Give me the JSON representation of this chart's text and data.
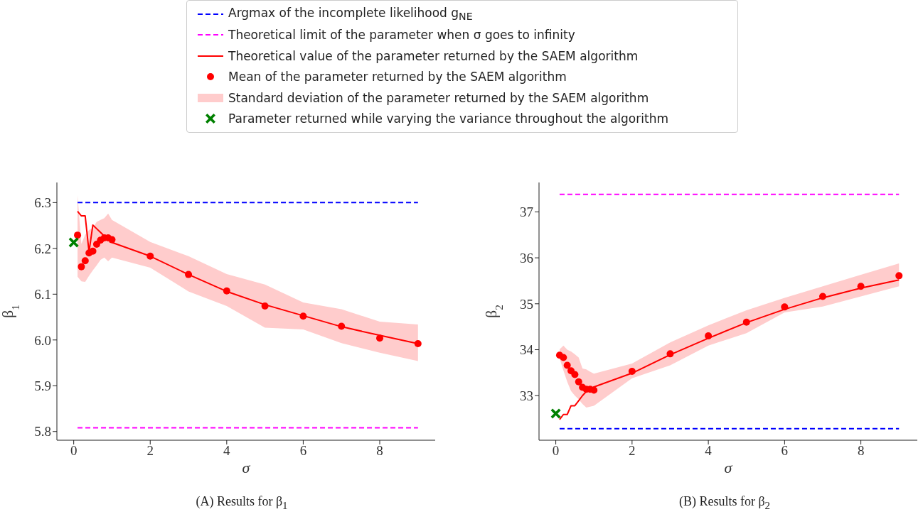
{
  "chart_data": [
    {
      "type": "line",
      "legend": "top",
      "xlabel": "σ",
      "ylabel": "β$_{1}$",
      "annotations": [
        "(A) Results for β$_{1}$"
      ],
      "xlim": [
        -0.44,
        9.45
      ],
      "ylim": [
        5.781,
        6.344
      ],
      "xticks": [
        0,
        2,
        4,
        6,
        8
      ],
      "yticks": [
        {
          "value": 5.8,
          "label": "5.8"
        },
        {
          "value": 5.9,
          "label": "5.9"
        },
        {
          "value": 6,
          "label": "6.0"
        },
        {
          "value": 6.1,
          "label": "6.1"
        },
        {
          "value": 6.2,
          "label": "6.2"
        },
        {
          "value": 6.3,
          "label": "6.3"
        }
      ],
      "series": [
        {
          "name": "Argmax of the incomplete likelihood g$_{NE}$",
          "color": "#0000ff",
          "line_style": "dashed",
          "marker": "none",
          "x": [
            0.1,
            9
          ],
          "values": [
            6.3,
            6.3
          ]
        },
        {
          "name": "Theoretical limit of the parameter when σ goes to infinity",
          "color": "#ff00ff",
          "line_style": "dashed",
          "marker": "none",
          "x": [
            0.1,
            9
          ],
          "values": [
            5.808,
            5.808
          ]
        },
        {
          "name": "Theoretical value of the parameter returned by the SAEM algorithm",
          "color": "#ff0000",
          "line_style": "solid",
          "marker": "none",
          "x": [
            0.1,
            0.2,
            0.3,
            0.4,
            0.5,
            0.6,
            0.7,
            0.8,
            0.9,
            1,
            2,
            3,
            4,
            5,
            6,
            7,
            8,
            9
          ],
          "values": [
            6.281,
            6.271,
            6.271,
            6.192,
            6.251,
            6.243,
            6.235,
            6.227,
            6.22,
            6.213,
            6.183,
            6.143,
            6.106,
            6.077,
            6.053,
            6.029,
            6.01,
            5.992
          ]
        },
        {
          "type": "scatter",
          "name": "Mean of the parameter returned by the SAEM algorithm",
          "color": "#ff0000",
          "marker": "circle",
          "x": [
            0.1,
            0.2,
            0.3,
            0.4,
            0.5,
            0.6,
            0.7,
            0.8,
            0.9,
            1,
            2,
            3,
            4,
            5,
            6,
            7,
            8,
            9
          ],
          "values": [
            6.229,
            6.16,
            6.173,
            6.19,
            6.194,
            6.209,
            6.218,
            6.223,
            6.223,
            6.219,
            6.183,
            6.143,
            6.107,
            6.074,
            6.052,
            6.03,
            6.004,
            5.992
          ]
        },
        {
          "type": "area",
          "name": "Standard deviation of the parameter returned by the SAEM algorithm",
          "color": "#ffcccc",
          "x": [
            0.1,
            0.2,
            0.3,
            0.4,
            0.5,
            0.6,
            0.7,
            0.8,
            0.9,
            1,
            2,
            3,
            4,
            5,
            6,
            7,
            8,
            9
          ],
          "values": [
            null,
            null,
            null,
            null,
            null,
            null,
            null,
            null,
            null,
            null,
            null,
            null,
            null,
            null,
            null,
            null,
            null,
            null
          ],
          "lower": [
            6.138,
            6.128,
            6.127,
            6.14,
            6.152,
            6.163,
            6.175,
            6.18,
            6.172,
            6.18,
            6.158,
            6.106,
            6.074,
            6.027,
            6.023,
            5.993,
            5.972,
            5.954
          ],
          "upper": [
            6.316,
            6.21,
            6.23,
            6.24,
            6.245,
            6.258,
            6.262,
            6.266,
            6.276,
            6.262,
            6.214,
            6.183,
            6.144,
            6.121,
            6.082,
            6.067,
            6.04,
            6.034
          ]
        },
        {
          "type": "scatter",
          "name": "Parameter returned while varying the variance throughout the algorithm",
          "color": "#008000",
          "marker": "cross",
          "x": [
            0
          ],
          "values": [
            6.213
          ]
        }
      ]
    },
    {
      "type": "line",
      "xlabel": "σ",
      "ylabel": "β$_{2}$",
      "annotations": [
        "(B) Results for β$_{2}$"
      ],
      "xlim": [
        -0.44,
        9.48
      ],
      "ylim": [
        32.03,
        37.64
      ],
      "xticks": [
        0,
        2,
        4,
        6,
        8
      ],
      "yticks": [
        33,
        34,
        35,
        36,
        37
      ],
      "series": [
        {
          "color": "#0000ff",
          "line_style": "dashed",
          "marker": "none",
          "x": [
            0.1,
            9
          ],
          "values": [
            32.28,
            32.28
          ]
        },
        {
          "color": "#ff00ff",
          "line_style": "dashed",
          "marker": "none",
          "x": [
            0.1,
            9
          ],
          "values": [
            37.38,
            37.38
          ]
        },
        {
          "color": "#ff0000",
          "line_style": "solid",
          "marker": "none",
          "x": [
            0.1,
            0.2,
            0.3,
            0.4,
            0.5,
            0.6,
            0.7,
            0.8,
            0.9,
            1,
            2,
            3,
            4,
            5,
            6,
            7,
            8,
            9
          ],
          "values": [
            32.48,
            32.59,
            32.59,
            32.78,
            32.78,
            32.89,
            33.0,
            33.09,
            33.14,
            33.19,
            33.49,
            33.89,
            34.25,
            34.59,
            34.88,
            35.13,
            35.34,
            35.52
          ]
        },
        {
          "type": "scatter",
          "color": "#ff0000",
          "marker": "circle",
          "x": [
            0.1,
            0.2,
            0.3,
            0.4,
            0.5,
            0.6,
            0.7,
            0.8,
            0.9,
            1,
            2,
            3,
            4,
            5,
            6,
            7,
            8,
            9
          ],
          "values": [
            33.88,
            33.83,
            33.66,
            33.54,
            33.46,
            33.3,
            33.18,
            33.14,
            33.14,
            33.12,
            33.53,
            33.91,
            34.3,
            34.6,
            34.93,
            35.16,
            35.38,
            35.61
          ]
        },
        {
          "type": "area",
          "color": "#ffcccc",
          "x": [
            0.1,
            0.2,
            0.3,
            0.4,
            0.5,
            0.6,
            0.7,
            0.8,
            0.9,
            1,
            2,
            3,
            4,
            5,
            6,
            7,
            8,
            9
          ],
          "values": [
            null,
            null,
            null,
            null,
            null,
            null,
            null,
            null,
            null,
            null,
            null,
            null,
            null,
            null,
            null,
            null,
            null,
            null
          ],
          "lower": [
            33.81,
            33.55,
            33.3,
            33.1,
            33.0,
            32.92,
            32.82,
            32.74,
            32.76,
            32.78,
            33.38,
            33.66,
            34.09,
            34.36,
            34.81,
            34.94,
            35.16,
            35.38
          ],
          "upper": [
            34.01,
            34.09,
            34.0,
            33.96,
            33.9,
            33.83,
            33.59,
            33.57,
            33.52,
            33.48,
            33.7,
            34.16,
            34.53,
            34.86,
            35.13,
            35.38,
            35.63,
            35.88
          ]
        },
        {
          "type": "scatter",
          "color": "#008000",
          "marker": "cross",
          "x": [
            0
          ],
          "values": [
            32.61
          ]
        }
      ]
    }
  ]
}
